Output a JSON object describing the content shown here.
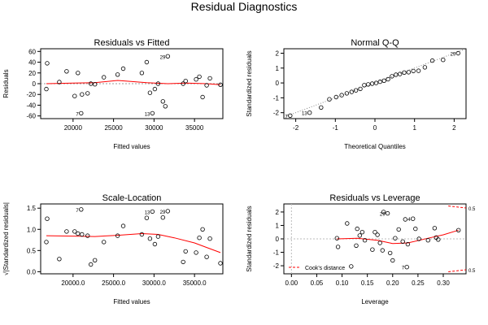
{
  "page_title": "Residual Diagnostics",
  "chart_data": [
    {
      "type": "scatter",
      "title": "Residuals vs Fitted",
      "xlabel": "Fitted values",
      "ylabel": "Residuals",
      "xlim": [
        16000,
        38500
      ],
      "ylim": [
        -65,
        65
      ],
      "xticks": [
        20000,
        25000,
        30000,
        35000
      ],
      "yticks": [
        -60,
        -40,
        -20,
        0,
        20,
        40,
        60
      ],
      "ref_line": 0,
      "points": [
        [
          16700,
          -10
        ],
        [
          16800,
          38
        ],
        [
          18300,
          3
        ],
        [
          19200,
          23
        ],
        [
          20200,
          -23
        ],
        [
          20600,
          20
        ],
        [
          21000,
          -55
        ],
        [
          21100,
          -20
        ],
        [
          21800,
          -18
        ],
        [
          22200,
          0
        ],
        [
          22700,
          -1
        ],
        [
          23800,
          12
        ],
        [
          25500,
          17
        ],
        [
          26200,
          28
        ],
        [
          28500,
          20
        ],
        [
          29100,
          40
        ],
        [
          29500,
          -17
        ],
        [
          29800,
          -55
        ],
        [
          30100,
          -10
        ],
        [
          30500,
          0
        ],
        [
          31100,
          -33
        ],
        [
          31400,
          -42
        ],
        [
          31700,
          51
        ],
        [
          33600,
          0
        ],
        [
          33900,
          5
        ],
        [
          35200,
          8
        ],
        [
          35600,
          13
        ],
        [
          36000,
          -25
        ],
        [
          36500,
          -3
        ],
        [
          36900,
          10
        ],
        [
          38200,
          -2
        ]
      ],
      "labels": [
        [
          "7",
          21000,
          -55
        ],
        [
          "13",
          29800,
          -55
        ],
        [
          "29",
          31700,
          51
        ]
      ],
      "smooth": [
        [
          16700,
          0
        ],
        [
          20000,
          1
        ],
        [
          22700,
          2
        ],
        [
          25500,
          6
        ],
        [
          26500,
          5
        ],
        [
          29100,
          2
        ],
        [
          31700,
          0
        ],
        [
          34000,
          1
        ],
        [
          36500,
          0
        ],
        [
          38200,
          -2
        ]
      ]
    },
    {
      "type": "scatter",
      "title": "Normal Q-Q",
      "xlabel": "Theoretical Quantiles",
      "ylabel": "Standardized residuals",
      "xlim": [
        -2.3,
        2.3
      ],
      "ylim": [
        -2.4,
        2.3
      ],
      "xticks": [
        -2,
        -1,
        0,
        1,
        2
      ],
      "yticks": [
        -2,
        -1,
        0,
        1,
        2
      ],
      "points": [
        [
          -2.14,
          -2.2
        ],
        [
          -1.65,
          -2.0
        ],
        [
          -1.36,
          -1.65
        ],
        [
          -1.15,
          -1.1
        ],
        [
          -0.98,
          -0.95
        ],
        [
          -0.84,
          -0.82
        ],
        [
          -0.71,
          -0.7
        ],
        [
          -0.59,
          -0.6
        ],
        [
          -0.48,
          -0.5
        ],
        [
          -0.37,
          -0.4
        ],
        [
          -0.27,
          -0.15
        ],
        [
          -0.17,
          -0.1
        ],
        [
          -0.07,
          -0.05
        ],
        [
          0.03,
          0.0
        ],
        [
          0.13,
          0.08
        ],
        [
          0.23,
          0.15
        ],
        [
          0.33,
          0.25
        ],
        [
          0.43,
          0.45
        ],
        [
          0.53,
          0.55
        ],
        [
          0.63,
          0.6
        ],
        [
          0.74,
          0.7
        ],
        [
          0.85,
          0.72
        ],
        [
          0.97,
          0.8
        ],
        [
          1.1,
          0.82
        ],
        [
          1.26,
          1.05
        ],
        [
          1.45,
          1.5
        ],
        [
          1.72,
          1.55
        ],
        [
          2.1,
          2.0
        ]
      ],
      "labels": [
        [
          "7",
          -2.14,
          -2.2
        ],
        [
          "13",
          -1.65,
          -2.0
        ],
        [
          "29",
          2.1,
          2.0
        ]
      ],
      "qq_line": [
        [
          -2.3,
          -2.3
        ],
        [
          2.3,
          2.3
        ]
      ]
    },
    {
      "type": "scatter",
      "title": "Scale-Location",
      "xlabel": "Fitted values",
      "ylabel": "√|Standardized residuals|",
      "xlim": [
        16000,
        38500
      ],
      "ylim": [
        -0.05,
        1.6
      ],
      "xticks": [
        20000,
        25000,
        30000,
        35000
      ],
      "yticks": [
        0.0,
        0.5,
        1.0,
        1.5
      ],
      "points": [
        [
          16700,
          0.7
        ],
        [
          16800,
          1.25
        ],
        [
          18300,
          0.3
        ],
        [
          19200,
          0.95
        ],
        [
          20200,
          0.95
        ],
        [
          20600,
          0.9
        ],
        [
          21000,
          1.47
        ],
        [
          21100,
          0.88
        ],
        [
          21800,
          0.85
        ],
        [
          22200,
          0.17
        ],
        [
          22700,
          0.27
        ],
        [
          23800,
          0.7
        ],
        [
          25500,
          0.85
        ],
        [
          26200,
          1.08
        ],
        [
          28500,
          0.88
        ],
        [
          29100,
          1.27
        ],
        [
          29500,
          0.78
        ],
        [
          29800,
          1.42
        ],
        [
          30100,
          0.65
        ],
        [
          30500,
          0.83
        ],
        [
          31100,
          1.28
        ],
        [
          31700,
          1.43
        ],
        [
          33600,
          0.23
        ],
        [
          33900,
          0.48
        ],
        [
          35200,
          0.45
        ],
        [
          35600,
          0.8
        ],
        [
          36000,
          1.0
        ],
        [
          36500,
          0.35
        ],
        [
          36900,
          0.78
        ],
        [
          38200,
          0.2
        ]
      ],
      "labels": [
        [
          "7",
          21000,
          1.47
        ],
        [
          "13",
          29800,
          1.42
        ],
        [
          "29",
          31700,
          1.43
        ]
      ],
      "smooth": [
        [
          16700,
          0.85
        ],
        [
          20000,
          0.84
        ],
        [
          22700,
          0.83
        ],
        [
          25500,
          0.86
        ],
        [
          28500,
          0.9
        ],
        [
          30500,
          0.88
        ],
        [
          32500,
          0.8
        ],
        [
          35000,
          0.68
        ],
        [
          38200,
          0.45
        ]
      ]
    },
    {
      "type": "scatter",
      "title": "Residuals vs Leverage",
      "xlabel": "Leverage",
      "ylabel": "Standardized residuals",
      "xlim": [
        -0.015,
        0.345
      ],
      "ylim": [
        -2.6,
        2.6
      ],
      "xticks": [
        0.0,
        0.05,
        0.1,
        0.15,
        0.2,
        0.25,
        0.3
      ],
      "yticks": [
        -2,
        -1,
        0,
        1,
        2
      ],
      "points": [
        [
          0.09,
          0.05
        ],
        [
          0.092,
          -0.6
        ],
        [
          0.11,
          1.15
        ],
        [
          0.118,
          -2.05
        ],
        [
          0.128,
          -0.5
        ],
        [
          0.13,
          0.75
        ],
        [
          0.135,
          0.25
        ],
        [
          0.14,
          0.5
        ],
        [
          0.145,
          -0.1
        ],
        [
          0.16,
          -0.8
        ],
        [
          0.165,
          0.5
        ],
        [
          0.17,
          0.3
        ],
        [
          0.175,
          -0.3
        ],
        [
          0.18,
          -0.85
        ],
        [
          0.182,
          2.0
        ],
        [
          0.19,
          1.9
        ],
        [
          0.195,
          -1.05
        ],
        [
          0.2,
          -1.6
        ],
        [
          0.205,
          0.05
        ],
        [
          0.212,
          0.7
        ],
        [
          0.22,
          -0.2
        ],
        [
          0.225,
          1.45
        ],
        [
          0.228,
          -2.1
        ],
        [
          0.23,
          -0.4
        ],
        [
          0.24,
          1.5
        ],
        [
          0.245,
          0.75
        ],
        [
          0.252,
          0.0
        ],
        [
          0.27,
          -0.1
        ],
        [
          0.283,
          0.8
        ],
        [
          0.286,
          0.1
        ],
        [
          0.29,
          -0.05
        ],
        [
          0.33,
          0.65
        ]
      ],
      "labels": [
        [
          "7",
          0.228,
          -2.1
        ],
        [
          "29",
          0.19,
          1.9
        ],
        [
          "4",
          0.24,
          1.5
        ]
      ],
      "smooth": [
        [
          0.09,
          0.0
        ],
        [
          0.13,
          0.05
        ],
        [
          0.17,
          -0.1
        ],
        [
          0.2,
          -0.35
        ],
        [
          0.23,
          -0.3
        ],
        [
          0.27,
          0.05
        ],
        [
          0.3,
          0.3
        ],
        [
          0.33,
          0.65
        ]
      ],
      "cook_contours": [
        [
          [
            0.31,
            2.45
          ],
          [
            0.345,
            2.3
          ]
        ],
        [
          [
            0.31,
            -2.45
          ],
          [
            0.345,
            -2.3
          ]
        ]
      ],
      "cook_labels": [
        "0.5",
        "0.5"
      ],
      "legend": {
        "label": "Cook's distance",
        "position": "bottom-left"
      }
    }
  ]
}
